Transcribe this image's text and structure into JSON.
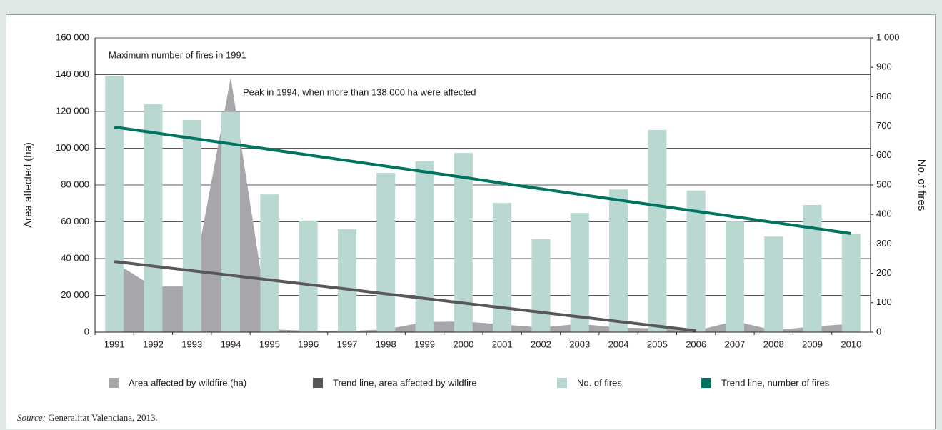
{
  "chart_data": {
    "type": "bar",
    "categories": [
      "1991",
      "1992",
      "1993",
      "1994",
      "1995",
      "1996",
      "1997",
      "1998",
      "1999",
      "2000",
      "2001",
      "2002",
      "2003",
      "2004",
      "2005",
      "2006",
      "2007",
      "2008",
      "2009",
      "2010"
    ],
    "series": [
      {
        "name": "Area affected by wildfire (ha)",
        "type": "area",
        "axis": "y",
        "color": "#a7a7ab",
        "values": [
          38000,
          24800,
          24800,
          138500,
          1500,
          800,
          500,
          1500,
          5500,
          5800,
          4200,
          2500,
          4500,
          2500,
          2000,
          800,
          6000,
          1000,
          3000,
          4500
        ]
      },
      {
        "name": "Trend line, area affected by wildfire",
        "type": "line",
        "axis": "y",
        "color": "#58585a",
        "values": [
          38400,
          35900,
          33400,
          30900,
          28400,
          25900,
          23400,
          20800,
          18300,
          15800,
          13300,
          10800,
          8300,
          5800,
          3300,
          800,
          null,
          null,
          null,
          null
        ]
      },
      {
        "name": "No. of fires",
        "type": "bar",
        "axis": "y2",
        "color": "#b9d8d1",
        "values": [
          871,
          774,
          721,
          748,
          468,
          379,
          350,
          541,
          580,
          609,
          439,
          316,
          405,
          485,
          687,
          481,
          376,
          325,
          432,
          333
        ]
      },
      {
        "name": "Trend line, number of fires",
        "type": "line",
        "axis": "y2",
        "color": "#007461",
        "values": [
          697,
          678,
          659,
          640,
          621,
          602,
          583,
          564,
          545,
          526,
          506,
          487,
          468,
          449,
          430,
          411,
          392,
          373,
          354,
          335
        ]
      }
    ],
    "ylabel": "Area affected (ha)",
    "y2label": "No. of fires",
    "ylim": [
      0,
      160000
    ],
    "yticks": [
      0,
      {
        "value": 20000,
        "label": "20 000"
      },
      {
        "value": 40000,
        "label": "40 000"
      },
      {
        "value": 60000,
        "label": "60 000"
      },
      {
        "value": 80000,
        "label": "80 000"
      },
      {
        "value": 100000,
        "label": "100 000"
      },
      {
        "value": 120000,
        "label": "120 000"
      },
      {
        "value": 140000,
        "label": "140 000"
      },
      {
        "value": 160000,
        "label": "160 000"
      }
    ],
    "y2lim": [
      0,
      1000
    ],
    "y2ticks": [
      0,
      100,
      200,
      300,
      400,
      500,
      600,
      700,
      800,
      900,
      {
        "value": 1000,
        "label": "1 000"
      }
    ],
    "grid": true,
    "annotations": [
      "Maximum number of fires in 1991",
      "Peak in 1994, when more than 138 000 ha were affected"
    ],
    "legend": "bottom",
    "source": {
      "label": "Source:",
      "text": "Generalitat Valenciana, 2013."
    }
  }
}
